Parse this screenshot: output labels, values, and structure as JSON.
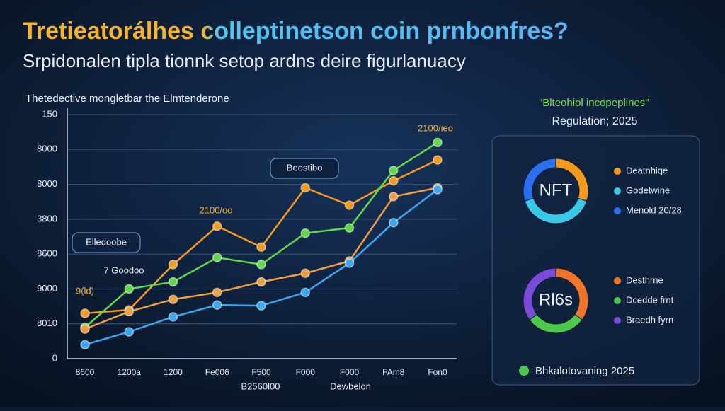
{
  "header": {
    "title": "Tretieatorálhes colleptinetson coin prnbonfres?",
    "subtitle": "Srpidonalen tipla tionnk setop ardns deire figurlanuacy"
  },
  "panel": {
    "title": "'Blteohiol incopeplines\"",
    "subtitle": "Regulation; 2025",
    "footer": "Bhkalotovaning 2025"
  },
  "chart_data": [
    {
      "type": "line",
      "title": "Thetedective mongletbar the Elmtenderone",
      "categories": [
        "8600",
        "1200a",
        "1200",
        "Fe006",
        "F500",
        "F000",
        "F000",
        "FAm8",
        "Fon0"
      ],
      "series": [
        {
          "name": "Orange",
          "color": "#f59a1c",
          "values": [
            1.3,
            1.4,
            2.7,
            3.8,
            3.2,
            4.9,
            4.4,
            5.1,
            5.7
          ]
        },
        {
          "name": "Green",
          "color": "#5fd94a",
          "values": [
            0.9,
            2.0,
            2.2,
            2.9,
            2.7,
            3.6,
            3.75,
            5.4,
            6.2
          ]
        },
        {
          "name": "Light orange",
          "color": "#f0a040",
          "values": [
            0.85,
            1.35,
            1.7,
            1.9,
            2.2,
            2.45,
            2.8,
            4.65,
            4.9
          ]
        },
        {
          "name": "Blue",
          "color": "#3aa8f0",
          "values": [
            0.4,
            0.77,
            1.2,
            1.54,
            1.52,
            1.9,
            2.74,
            3.9,
            4.85
          ]
        }
      ],
      "ylim": [
        0,
        7
      ],
      "yticks": [
        0,
        {
          "value": 1,
          "label": "8010"
        },
        {
          "value": 2,
          "label": "9000"
        },
        {
          "value": 3,
          "label": "8600"
        },
        {
          "value": 4,
          "label": "3800"
        },
        {
          "value": 5,
          "label": "8000"
        },
        {
          "value": 6,
          "label": "8000"
        },
        {
          "value": 7,
          "label": "150"
        }
      ],
      "grid": true,
      "annotations": [
        "Beostibo",
        "2100/oo",
        "2100/ieo",
        "Elledoobe",
        "7 Goodoo",
        "9(ld)",
        "B2560l00",
        "Dewbelon"
      ]
    },
    {
      "type": "donut",
      "center_label": "NFT",
      "categories": [
        "Deatnhiqe",
        "Godetwine",
        "Menold 20/28"
      ],
      "values": [
        30,
        40,
        30
      ],
      "colors": [
        "#f59a1c",
        "#38c8e8",
        "#2a6ff0"
      ]
    },
    {
      "type": "donut",
      "center_label": "Rl6s",
      "categories": [
        "Desthrne",
        "Dcedde frnt",
        "Braedh fyrn"
      ],
      "values": [
        35,
        30,
        35
      ],
      "colors": [
        "#f0742a",
        "#4cc84a",
        "#7a4ad8"
      ]
    }
  ]
}
